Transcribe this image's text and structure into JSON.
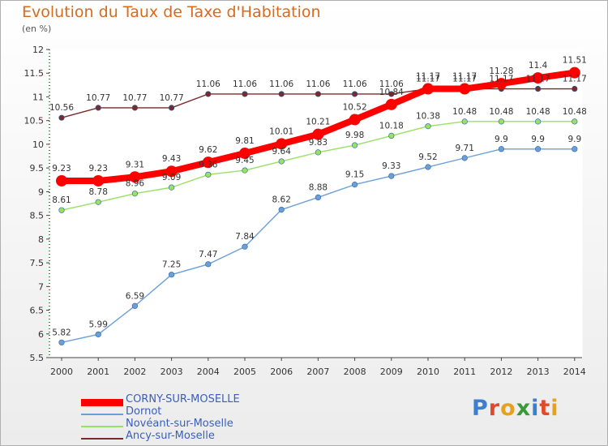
{
  "chart_data": {
    "type": "line",
    "title": "Evolution du Taux de Taxe d'Habitation",
    "unit_label": "(en %)",
    "x": [
      "2000",
      "2001",
      "2002",
      "2003",
      "2004",
      "2005",
      "2006",
      "2007",
      "2008",
      "2009",
      "2010",
      "2011",
      "2012",
      "2013",
      "2014"
    ],
    "ylim": [
      5.5,
      12
    ],
    "yticks": [
      "5.5",
      "6",
      "6.5",
      "7",
      "7.5",
      "8",
      "8.5",
      "9",
      "9.5",
      "10",
      "10.5",
      "11",
      "11.5",
      "12"
    ],
    "grid": false,
    "legend_position": "bottom-left",
    "series": [
      {
        "name": "CORNY-SUR-MOSELLE",
        "color": "#ff0000",
        "values": [
          9.23,
          9.23,
          9.31,
          9.43,
          9.62,
          9.81,
          10.01,
          10.21,
          10.52,
          10.84,
          11.17,
          11.17,
          11.28,
          11.4,
          11.51
        ],
        "labels": [
          "9.23",
          "9.23",
          "9.31",
          "9.43",
          "9.62",
          "9.81",
          "10.01",
          "10.21",
          "10.52",
          "10.84",
          "11.17",
          "11.17",
          "11.28",
          "11.4",
          "11.51"
        ]
      },
      {
        "name": "Dornot",
        "color": "#6a9fd8",
        "values": [
          5.82,
          5.99,
          6.59,
          7.25,
          7.47,
          7.84,
          8.62,
          8.88,
          9.15,
          9.33,
          9.52,
          9.71,
          9.9,
          9.9,
          9.9
        ],
        "labels": [
          "5.82",
          "5.99",
          "6.59",
          "7.25",
          "7.47",
          "7.84",
          "8.62",
          "8.88",
          "9.15",
          "9.33",
          "9.52",
          "9.71",
          "9.9",
          "9.9",
          "9.9"
        ]
      },
      {
        "name": "Novéant-sur-Moselle",
        "color": "#99e066",
        "values": [
          8.61,
          8.78,
          8.96,
          9.09,
          9.36,
          9.45,
          9.64,
          9.83,
          9.98,
          10.18,
          10.38,
          10.48,
          10.48,
          10.48,
          10.48
        ],
        "labels": [
          "8.61",
          "8.78",
          "8.96",
          "9.09",
          "9.36",
          "9.45",
          "9.64",
          "9.83",
          "9.98",
          "10.18",
          "10.38",
          "10.48",
          "10.48",
          "10.48",
          "10.48"
        ]
      },
      {
        "name": "Ancy-sur-Moselle",
        "color": "#7a2a2a",
        "values": [
          10.56,
          10.77,
          10.77,
          10.77,
          11.06,
          11.06,
          11.06,
          11.06,
          11.06,
          11.06,
          11.17,
          11.17,
          11.17,
          11.17,
          11.17
        ],
        "labels": [
          "10.56",
          "10.77",
          "10.77",
          "10.77",
          "11.06",
          "11.06",
          "11.06",
          "11.06",
          "11.06",
          "11.06",
          "11.17",
          "11.17",
          "11.17",
          "11.17",
          "11.17"
        ]
      }
    ]
  },
  "logo": {
    "text": "Proxiti",
    "letters": [
      "P",
      "r",
      "o",
      "x",
      "i",
      "t",
      "i"
    ],
    "colors": [
      "#3a7fd0",
      "#e04a2a",
      "#e6a21a",
      "#3a9a3a",
      "#3a7fd0",
      "#e04a2a",
      "#e6a21a"
    ]
  }
}
